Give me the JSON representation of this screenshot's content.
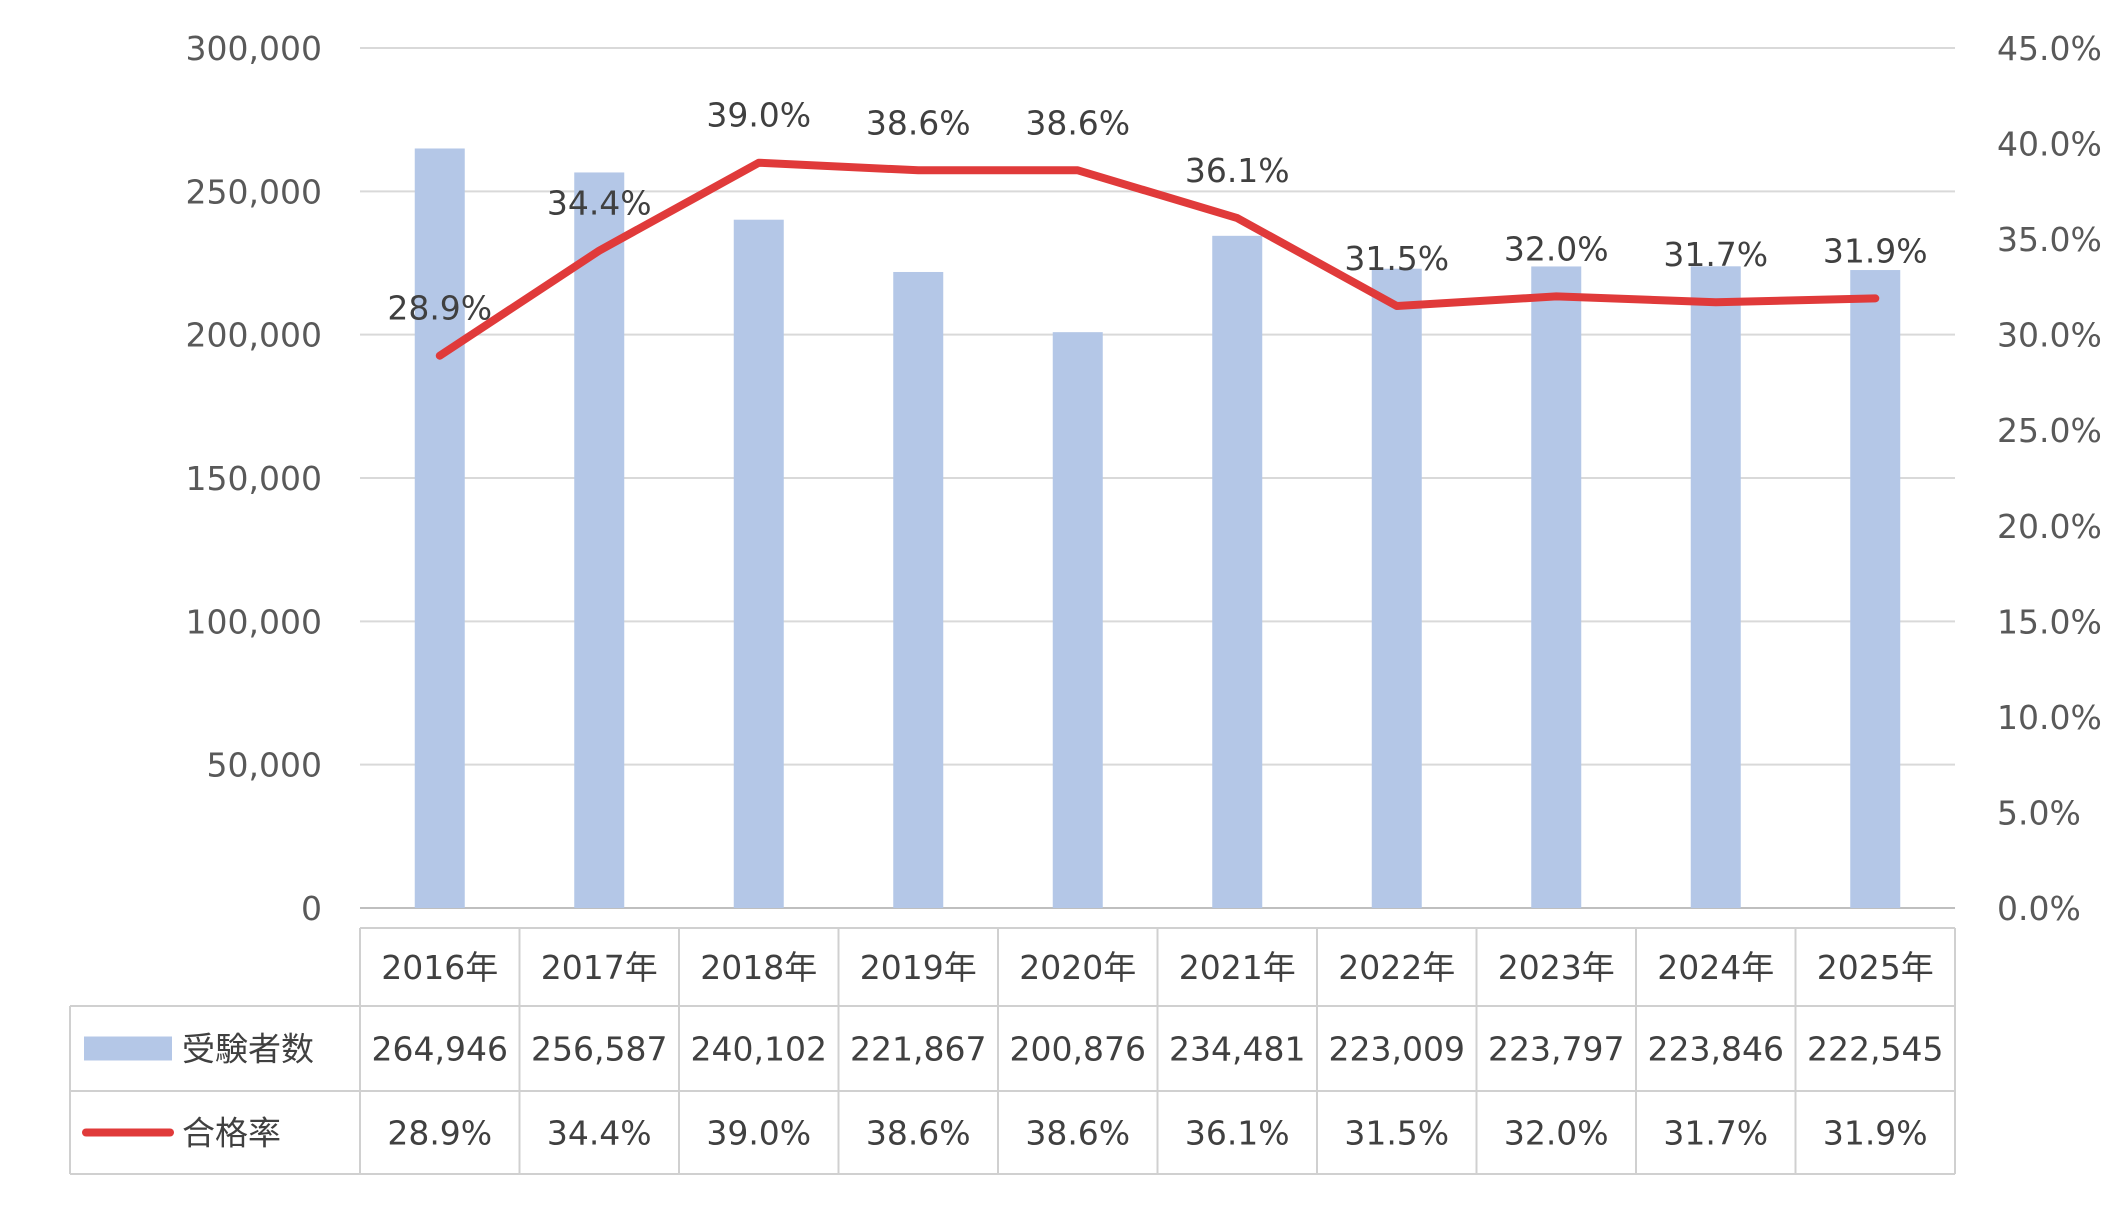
{
  "chart_data": {
    "type": "bar",
    "categories": [
      "2016年",
      "2017年",
      "2018年",
      "2019年",
      "2020年",
      "2021年",
      "2022年",
      "2023年",
      "2024年",
      "2025年"
    ],
    "series": [
      {
        "name": "受験者数",
        "type": "bar",
        "axis": "left",
        "color": "#b4c7e7",
        "values": [
          264946,
          256587,
          240102,
          221867,
          200876,
          234481,
          223009,
          223797,
          223846,
          222545
        ],
        "table_labels": [
          "264,946",
          "256,587",
          "240,102",
          "221,867",
          "200,876",
          "234,481",
          "223,009",
          "223,797",
          "223,846",
          "222,545"
        ]
      },
      {
        "name": "合格率",
        "type": "line",
        "axis": "right",
        "color": "#e03a3a",
        "values": [
          28.9,
          34.4,
          39.0,
          38.6,
          38.6,
          36.1,
          31.5,
          32.0,
          31.7,
          31.9
        ],
        "labels": [
          "28.9%",
          "34.4%",
          "39.0%",
          "38.6%",
          "38.6%",
          "36.1%",
          "31.5%",
          "32.0%",
          "31.7%",
          "31.9%"
        ]
      }
    ],
    "y_left": {
      "ylim": [
        0,
        300000
      ],
      "ticks": [
        0,
        50000,
        100000,
        150000,
        200000,
        250000,
        300000
      ],
      "tick_labels": [
        "0",
        "50,000",
        "100,000",
        "150,000",
        "200,000",
        "250,000",
        "300,000"
      ]
    },
    "y_right": {
      "ylim": [
        0,
        45
      ],
      "ticks": [
        0,
        5,
        10,
        15,
        20,
        25,
        30,
        35,
        40,
        45
      ],
      "tick_labels": [
        "0.0%",
        "5.0%",
        "10.0%",
        "15.0%",
        "20.0%",
        "25.0%",
        "30.0%",
        "35.0%",
        "40.0%",
        "45.0%"
      ]
    },
    "grid": true,
    "legend": "data-table"
  }
}
